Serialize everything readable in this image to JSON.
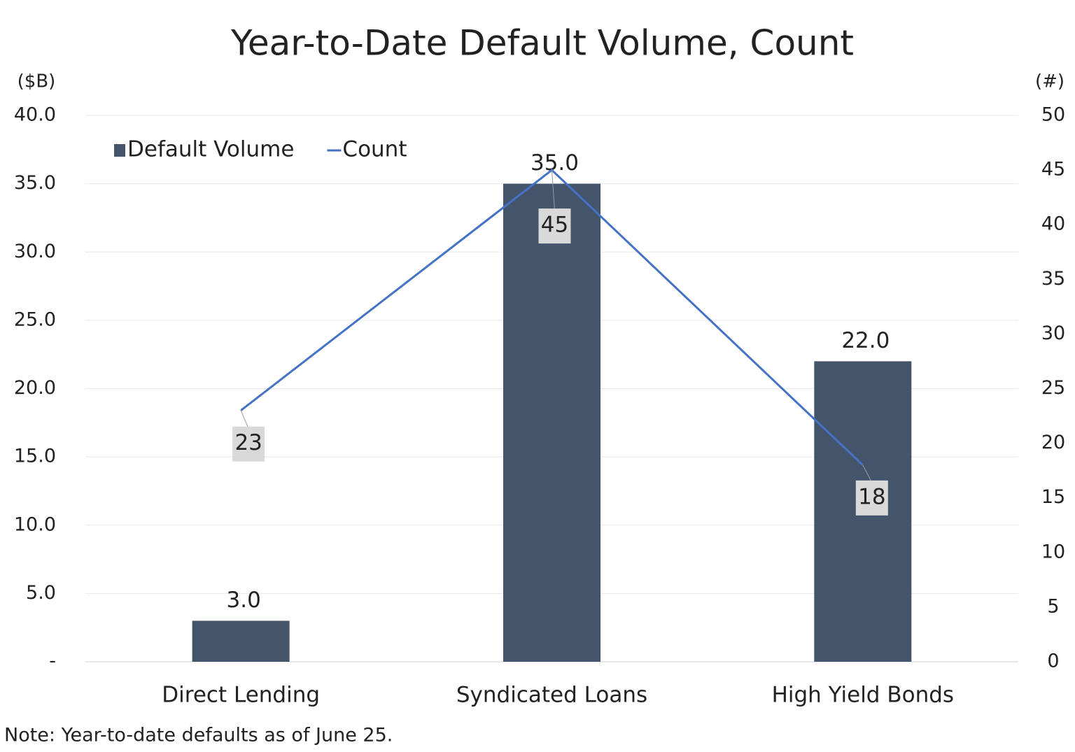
{
  "chart_data": {
    "type": "combo",
    "title": "Year-to-Date Default Volume, Count",
    "y_axis_label": "($B)",
    "y2_axis_label": "(#)",
    "note": "Note: Year-to-date defaults as of June 25.",
    "categories": [
      "Direct Lending",
      "Syndicated Loans",
      "High Yield Bonds"
    ],
    "series": [
      {
        "name": "Default Volume",
        "type": "bar",
        "color": "#44546a",
        "values": [
          3,
          35,
          22
        ],
        "value_labels": [
          "3.0",
          "35.0",
          "22.0"
        ]
      },
      {
        "name": "Count",
        "type": "line",
        "axis": "y2",
        "color": "#4472c4",
        "values": [
          23,
          45,
          18
        ]
      }
    ],
    "ylim": [
      0,
      40
    ],
    "yticks": [
      {
        "value": 0,
        "label": "-"
      },
      {
        "value": 5,
        "label": "5.0"
      },
      {
        "value": 10,
        "label": "10.0"
      },
      {
        "value": 15,
        "label": "15.0"
      },
      {
        "value": 20,
        "label": "20.0"
      },
      {
        "value": 25,
        "label": "25.0"
      },
      {
        "value": 30,
        "label": "30.0"
      },
      {
        "value": 35,
        "label": "35.0"
      },
      {
        "value": 40,
        "label": "40.0"
      }
    ],
    "y2lim": [
      0,
      50
    ],
    "y2ticks": [
      0,
      5,
      10,
      15,
      20,
      25,
      30,
      35,
      40,
      45,
      50
    ],
    "grid": true,
    "legend": "top-left"
  }
}
